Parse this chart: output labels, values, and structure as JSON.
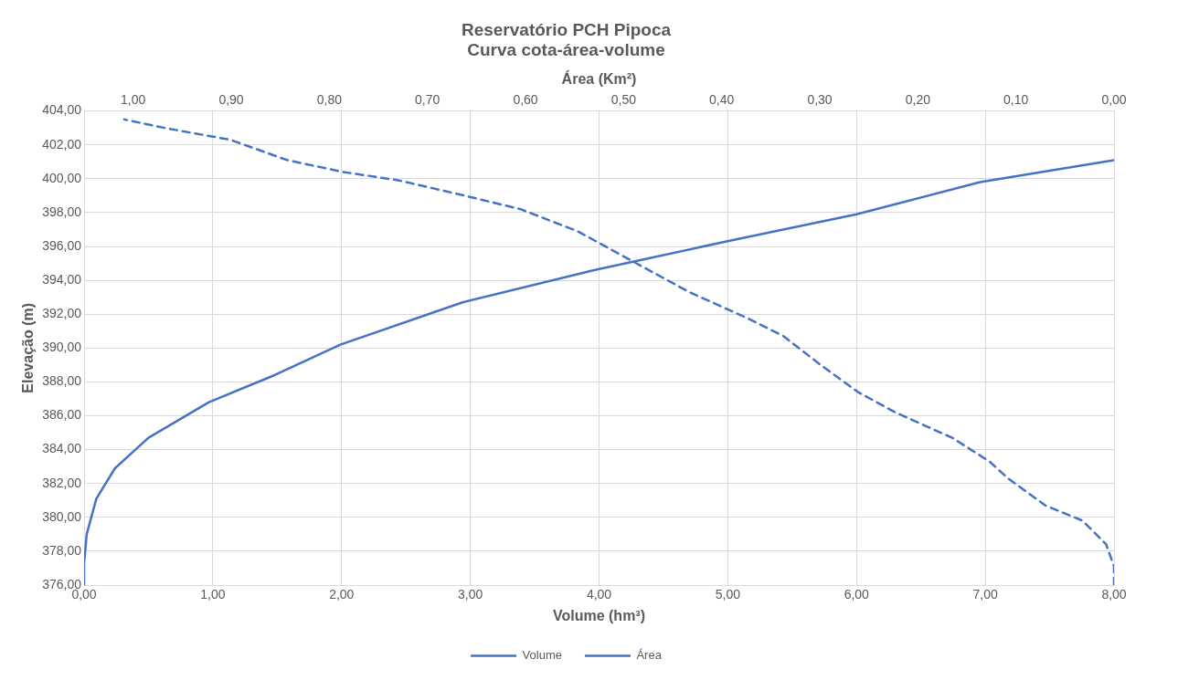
{
  "chart_data": {
    "type": "line",
    "title": "Reservatório PCH Pipoca",
    "subtitle": "Curva cota-área-volume",
    "xlabel": "Volume (hm³)",
    "x2label": "Área (Km²)",
    "ylabel": "Elevação (m)",
    "xlim": [
      0,
      8
    ],
    "xticks": [
      {
        "value": 0,
        "label": "0,00"
      },
      {
        "value": 1,
        "label": "1,00"
      },
      {
        "value": 2,
        "label": "2,00"
      },
      {
        "value": 3,
        "label": "3,00"
      },
      {
        "value": 4,
        "label": "4,00"
      },
      {
        "value": 5,
        "label": "5,00"
      },
      {
        "value": 6,
        "label": "6,00"
      },
      {
        "value": 7,
        "label": "7,00"
      },
      {
        "value": 8,
        "label": "8,00"
      }
    ],
    "x2lim": [
      1.05,
      0
    ],
    "x2ticks": [
      {
        "value": 1,
        "label": "1,00"
      },
      {
        "value": 0.9,
        "label": "0,90"
      },
      {
        "value": 0.8,
        "label": "0,80"
      },
      {
        "value": 0.7,
        "label": "0,70"
      },
      {
        "value": 0.6,
        "label": "0,60"
      },
      {
        "value": 0.5,
        "label": "0,50"
      },
      {
        "value": 0.4,
        "label": "0,40"
      },
      {
        "value": 0.3,
        "label": "0,30"
      },
      {
        "value": 0.2,
        "label": "0,20"
      },
      {
        "value": 0.1,
        "label": "0,10"
      },
      {
        "value": 0,
        "label": "0,00"
      }
    ],
    "ylim": [
      376,
      404
    ],
    "yticks": [
      {
        "value": 376,
        "label": "376,00"
      },
      {
        "value": 378,
        "label": "378,00"
      },
      {
        "value": 380,
        "label": "380,00"
      },
      {
        "value": 382,
        "label": "382,00"
      },
      {
        "value": 384,
        "label": "384,00"
      },
      {
        "value": 386,
        "label": "386,00"
      },
      {
        "value": 388,
        "label": "388,00"
      },
      {
        "value": 390,
        "label": "390,00"
      },
      {
        "value": 392,
        "label": "392,00"
      },
      {
        "value": 394,
        "label": "394,00"
      },
      {
        "value": 396,
        "label": "396,00"
      },
      {
        "value": 398,
        "label": "398,00"
      },
      {
        "value": 400,
        "label": "400,00"
      },
      {
        "value": 402,
        "label": "402,00"
      },
      {
        "value": 404,
        "label": "404,00"
      }
    ],
    "grid": true,
    "legend": "bottom",
    "marker": "none",
    "series": [
      {
        "name": "Volume",
        "color": "#4472c4",
        "line_style": "solid",
        "x": [
          0,
          0,
          0.01,
          0.02,
          0.095,
          0.24,
          0.5,
          0.97,
          1.48,
          1.99,
          2.94,
          3.96,
          4.99,
          6.0,
          6.96,
          8.0
        ],
        "values": [
          376,
          377.3,
          378.1,
          379.0,
          381.1,
          382.9,
          384.7,
          386.8,
          388.4,
          390.2,
          392.7,
          394.6,
          396.3,
          397.9,
          399.8,
          401.1
        ]
      },
      {
        "name": "Área",
        "color": "#4472c4",
        "line_style": "dashed",
        "axis": "x2",
        "x": [
          0,
          0,
          0.008,
          0.032,
          0.07,
          0.108,
          0.127,
          0.165,
          0.223,
          0.261,
          0.299,
          0.337,
          0.375,
          0.433,
          0.49,
          0.547,
          0.605,
          0.662,
          0.729,
          0.786,
          0.843,
          0.901,
          0.968,
          1.009
        ],
        "values": [
          376,
          377.1,
          378.4,
          379.8,
          380.7,
          382.3,
          383.3,
          384.7,
          386.2,
          387.4,
          389.0,
          390.7,
          391.8,
          393.3,
          395.1,
          396.9,
          398.2,
          399.0,
          399.9,
          400.4,
          401.1,
          402.3,
          403.0,
          403.5
        ]
      }
    ]
  }
}
